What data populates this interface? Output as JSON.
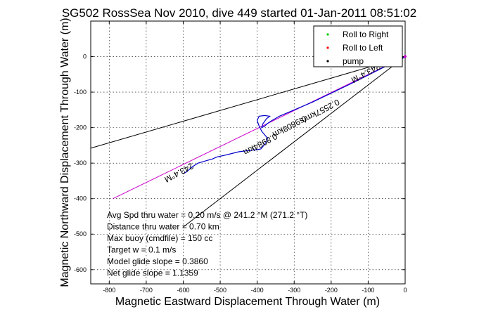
{
  "chart_data": {
    "type": "line",
    "title": "SG502 RossSea Nov 2010, dive 449 started 01-Jan-2011 08:51:02",
    "xlabel": "Magnetic Eastward Displacement Through Water (m)",
    "ylabel": "Magnetic Northward Displacement Through Water (m)",
    "xlim": [
      -850,
      0
    ],
    "ylim": [
      -640,
      100
    ],
    "xticks": [
      -800,
      -700,
      -600,
      -500,
      -400,
      -300,
      -200,
      -100,
      0
    ],
    "yticks": [
      0,
      -100,
      -200,
      -300,
      -400,
      -500,
      -600
    ],
    "grid": true,
    "legend": {
      "placement": "top-right",
      "entries": [
        {
          "label": "Roll to Right",
          "color": "#00cc00",
          "marker": "dot"
        },
        {
          "label": "Roll to Left",
          "color": "#ff0000",
          "marker": "dot"
        },
        {
          "label": "pump",
          "color": "#000000",
          "marker": "dot"
        }
      ]
    },
    "series": [
      {
        "style": "black-cone-upper",
        "color": "#000000",
        "x": [
          0,
          -850
        ],
        "y": [
          0,
          -258
        ]
      },
      {
        "style": "black-cone-lower",
        "color": "#000000",
        "x": [
          0,
          -600
        ],
        "y": [
          0,
          -480
        ]
      },
      {
        "style": "magenta-heading",
        "color": "#cc00cc",
        "x": [
          0,
          -790
        ],
        "y": [
          0,
          -400
        ]
      },
      {
        "style": "blue-track",
        "color": "#0000cc",
        "x": [
          0,
          -150,
          -250,
          -300,
          -340,
          -350,
          -360,
          -372,
          -380,
          -388,
          -385,
          -375,
          -366,
          -380,
          -395,
          -400,
          -395,
          -388,
          -380,
          -372,
          -375,
          -385,
          -390,
          -400,
          -420,
          -450,
          -480,
          -510,
          -520,
          -540,
          -560,
          -575,
          -590,
          -600
        ],
        "y": [
          0,
          -78,
          -128,
          -150,
          -168,
          -174,
          -180,
          -188,
          -196,
          -200,
          -190,
          -175,
          -168,
          -166,
          -168,
          -180,
          -195,
          -210,
          -220,
          -230,
          -240,
          -254,
          -260,
          -262,
          -264,
          -268,
          -276,
          -283,
          -288,
          -294,
          -300,
          -310,
          -324,
          -330
        ]
      }
    ],
    "line_labels": [
      {
        "text": "243.4°M",
        "x": -615,
        "y": -320,
        "angle_deg": -28
      },
      {
        "text": "0.8984km",
        "x": -395,
        "y": -240,
        "angle_deg": -28
      },
      {
        "text": "0.9808km",
        "x": -316,
        "y": -190,
        "angle_deg": -28
      },
      {
        "text": "0.2557km/s",
        "x": -235,
        "y": -148,
        "angle_deg": -28
      },
      {
        "text": "243.4°M",
        "x": -110,
        "y": -40,
        "angle_deg": -28
      }
    ],
    "annotations": [
      "Avg Spd thru water =  0.20 m/s @ 241.2   °M (271.2 °T)",
      "Distance thru water =  0.70 km",
      "Max buoy (cmdfile) = 150 cc",
      "Target w = 0.1 m/s",
      "Model glide slope = 0.3860",
      "Net glide slope = 1.1359"
    ]
  }
}
